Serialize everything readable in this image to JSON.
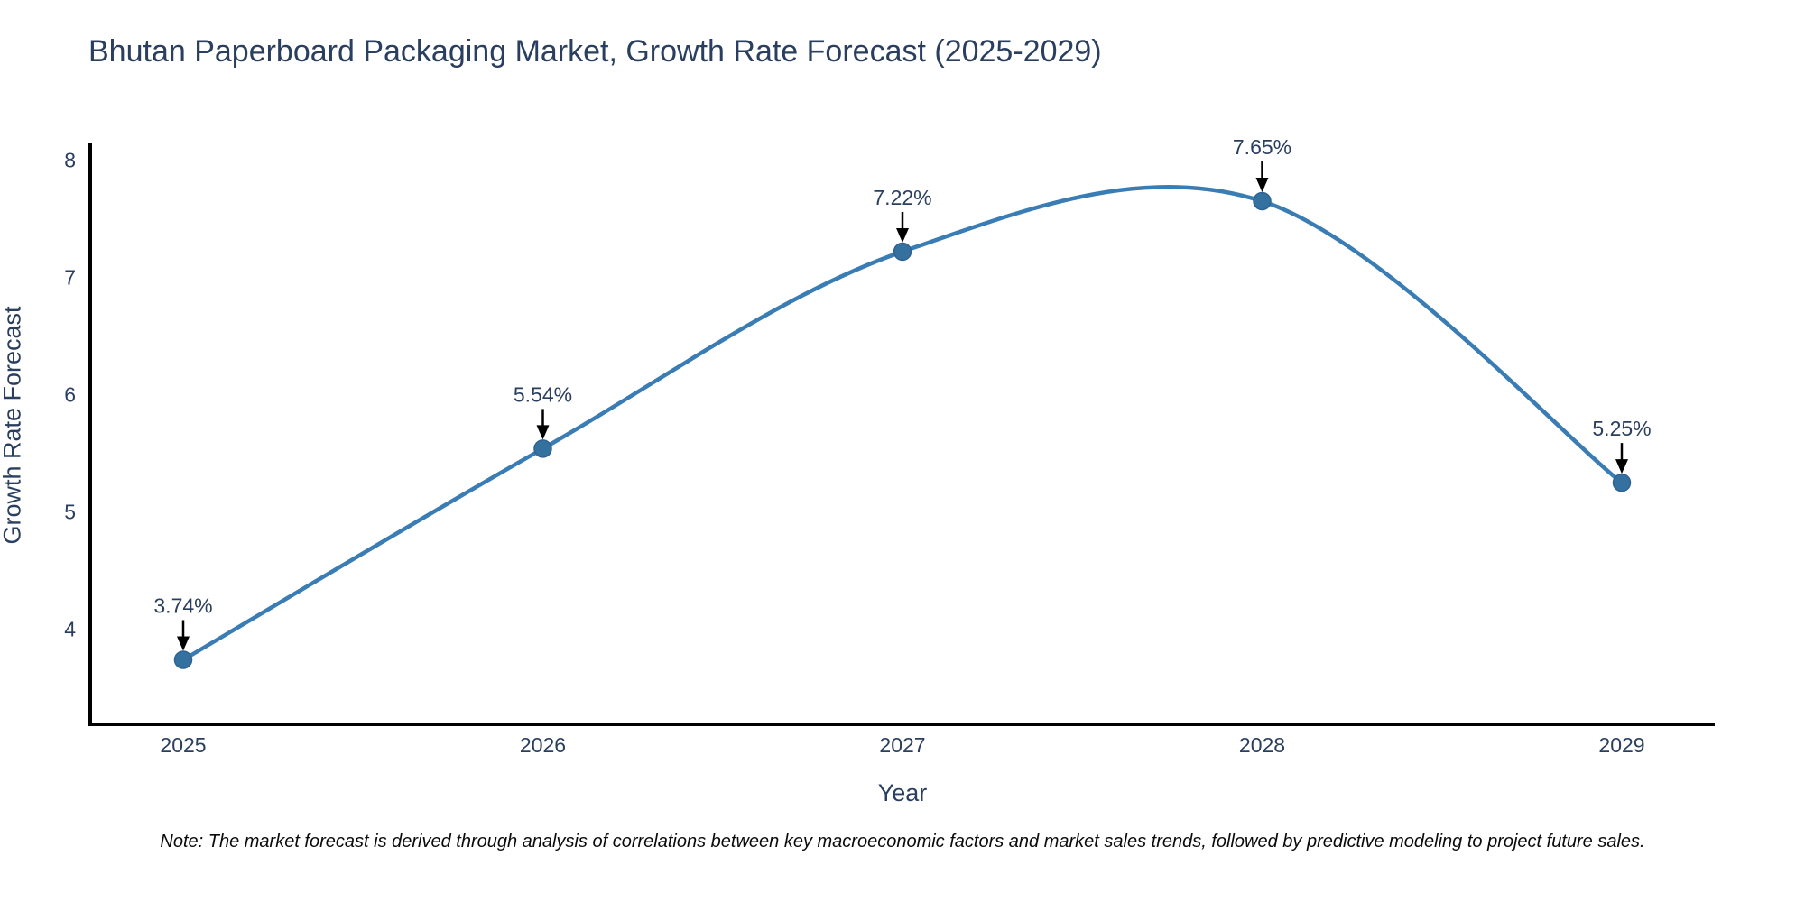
{
  "chart_data": {
    "type": "line",
    "title": "Bhutan Paperboard Packaging Market, Growth Rate Forecast (2025-2029)",
    "xlabel": "Year",
    "ylabel": "Growth Rate Forecast",
    "note": "Note: The market forecast is derived through analysis of correlations between key macroeconomic factors and market sales trends, followed by predictive modeling to project future sales.",
    "x": [
      2025,
      2026,
      2027,
      2028,
      2029
    ],
    "x_tick_labels": [
      "2025",
      "2026",
      "2027",
      "2028",
      "2029"
    ],
    "series": [
      {
        "name": "Growth Rate Forecast",
        "values": [
          3.74,
          5.54,
          7.22,
          7.65,
          5.25
        ]
      }
    ],
    "point_labels": [
      "3.74%",
      "5.54%",
      "7.22%",
      "7.65%",
      "5.25%"
    ],
    "y_ticks": [
      4,
      5,
      6,
      7,
      8
    ],
    "y_tick_labels": [
      "4",
      "5",
      "6",
      "7",
      "8"
    ],
    "ylim": [
      3.19,
      8.15
    ],
    "xlim": [
      2024.74,
      2029.26
    ],
    "line_shape": "spline",
    "grid": false,
    "legend": "none",
    "colors": {
      "line": "#3a7cb4",
      "marker_fill": "#35719f",
      "marker_stroke": "#2e6395",
      "axis": "#000000",
      "text": "#2a3f5f",
      "annotation_text": "#2a3f5f",
      "annotation_arrow": "#000000",
      "note_text": "#0a0a0a",
      "background": "#ffffff"
    }
  }
}
